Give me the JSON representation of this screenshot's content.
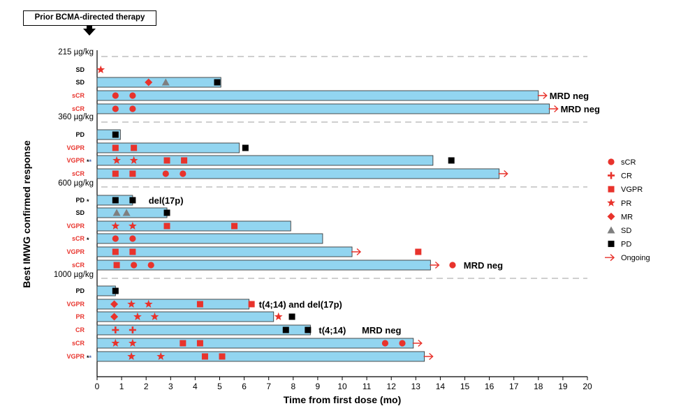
{
  "prior_therapy_label": "Prior BCMA-directed therapy",
  "colors": {
    "bar_fill": "#92D5F0",
    "bar_stroke": "#3a3a3a",
    "red": "#E8332C",
    "gray": "#7F7F7F",
    "black": "#000000",
    "dashed": "#BFBFBF",
    "star_blue": "#4F6DB8"
  },
  "chart_data": {
    "type": "swimmer",
    "xlabel": "Time from first dose (mo)",
    "ylabel": "Best IMWG confirmed response",
    "xlim": [
      0,
      20
    ],
    "xticks": [
      "0",
      "1",
      "2",
      "3",
      "4",
      "5",
      "6",
      "7",
      "8",
      "9",
      "10",
      "11",
      "12",
      "13",
      "14",
      "15",
      "16",
      "17",
      "18",
      "19",
      "20"
    ],
    "legend": [
      {
        "marker": "circle",
        "label": "sCR",
        "color": "red"
      },
      {
        "marker": "cross",
        "label": "CR",
        "color": "red"
      },
      {
        "marker": "square",
        "label": "VGPR",
        "color": "red"
      },
      {
        "marker": "star",
        "label": "PR",
        "color": "red"
      },
      {
        "marker": "diamond",
        "label": "MR",
        "color": "red"
      },
      {
        "marker": "triangle",
        "label": "SD",
        "color": "gray"
      },
      {
        "marker": "square",
        "label": "PD",
        "color": "black"
      },
      {
        "marker": "arrow",
        "label": "Ongoing",
        "color": "red"
      }
    ],
    "doses": [
      {
        "label": "215 µg/kg",
        "rows": [
          {
            "label": "SD",
            "red": false,
            "end": null,
            "arrow": false,
            "events": [
              {
                "x": 0.15,
                "m": "star",
                "c": "red"
              }
            ]
          },
          {
            "label": "SD",
            "red": false,
            "end": 5.05,
            "arrow": false,
            "events": [
              {
                "x": 2.1,
                "m": "diamond",
                "c": "red"
              },
              {
                "x": 2.8,
                "m": "triangle",
                "c": "gray"
              },
              {
                "x": 4.9,
                "m": "square",
                "c": "black"
              }
            ]
          },
          {
            "label": "sCR",
            "red": true,
            "end": 18.0,
            "arrow": true,
            "note": "MRD neg",
            "events": [
              {
                "x": 0.75,
                "m": "circle",
                "c": "red"
              },
              {
                "x": 1.45,
                "m": "circle",
                "c": "red"
              }
            ]
          },
          {
            "label": "sCR",
            "red": true,
            "end": 18.45,
            "arrow": true,
            "note": "MRD neg",
            "events": [
              {
                "x": 0.75,
                "m": "circle",
                "c": "red"
              },
              {
                "x": 1.45,
                "m": "circle",
                "c": "red"
              }
            ]
          }
        ]
      },
      {
        "label": "360 µg/kg",
        "rows": [
          {
            "label": "PD",
            "red": false,
            "end": 0.95,
            "arrow": false,
            "events": [
              {
                "x": 0.75,
                "m": "square",
                "c": "black"
              }
            ]
          },
          {
            "label": "VGPR",
            "red": true,
            "end": 5.8,
            "arrow": false,
            "events": [
              {
                "x": 0.75,
                "m": "square",
                "c": "red"
              },
              {
                "x": 1.5,
                "m": "square",
                "c": "red"
              },
              {
                "x": 6.05,
                "m": "square",
                "c": "black"
              }
            ]
          },
          {
            "label": "VGPR",
            "red": true,
            "star": "**",
            "end": 13.7,
            "arrow": false,
            "events": [
              {
                "x": 0.8,
                "m": "star",
                "c": "red"
              },
              {
                "x": 1.5,
                "m": "star",
                "c": "red"
              },
              {
                "x": 2.85,
                "m": "square",
                "c": "red"
              },
              {
                "x": 3.55,
                "m": "square",
                "c": "red"
              },
              {
                "x": 14.45,
                "m": "square",
                "c": "black"
              }
            ]
          },
          {
            "label": "sCR",
            "red": true,
            "end": 16.4,
            "arrow": true,
            "events": [
              {
                "x": 0.75,
                "m": "square",
                "c": "red"
              },
              {
                "x": 1.45,
                "m": "square",
                "c": "red"
              },
              {
                "x": 2.8,
                "m": "circle",
                "c": "red"
              },
              {
                "x": 3.5,
                "m": "circle",
                "c": "red"
              }
            ]
          }
        ]
      },
      {
        "label": "600 µg/kg",
        "rows": [
          {
            "label": "PD",
            "red": false,
            "star": "*",
            "end": 1.45,
            "arrow": false,
            "note": "del(17p)",
            "events": [
              {
                "x": 0.75,
                "m": "square",
                "c": "black"
              },
              {
                "x": 1.45,
                "m": "square",
                "c": "black"
              }
            ]
          },
          {
            "label": "SD",
            "red": false,
            "end": 2.85,
            "arrow": false,
            "events": [
              {
                "x": 0.8,
                "m": "triangle",
                "c": "gray"
              },
              {
                "x": 1.2,
                "m": "triangle",
                "c": "gray"
              },
              {
                "x": 2.85,
                "m": "square",
                "c": "black"
              }
            ]
          },
          {
            "label": "VGPR",
            "red": true,
            "end": 7.9,
            "arrow": false,
            "events": [
              {
                "x": 0.75,
                "m": "star",
                "c": "red"
              },
              {
                "x": 1.45,
                "m": "star",
                "c": "red"
              },
              {
                "x": 2.85,
                "m": "square",
                "c": "red"
              },
              {
                "x": 5.6,
                "m": "square",
                "c": "red"
              }
            ]
          },
          {
            "label": "sCR",
            "red": true,
            "star": "*",
            "end": 9.2,
            "arrow": false,
            "events": [
              {
                "x": 0.75,
                "m": "circle",
                "c": "red"
              },
              {
                "x": 1.45,
                "m": "circle",
                "c": "red"
              }
            ]
          },
          {
            "label": "VGPR",
            "red": true,
            "end": 10.4,
            "arrow": true,
            "events": [
              {
                "x": 0.75,
                "m": "square",
                "c": "red"
              },
              {
                "x": 1.45,
                "m": "square",
                "c": "red"
              },
              {
                "x": 13.1,
                "m": "square",
                "c": "red"
              }
            ]
          },
          {
            "label": "sCR",
            "red": true,
            "end": 13.6,
            "arrow": true,
            "note": "MRD neg",
            "events": [
              {
                "x": 0.8,
                "m": "square",
                "c": "red"
              },
              {
                "x": 1.5,
                "m": "circle",
                "c": "red"
              },
              {
                "x": 2.2,
                "m": "circle",
                "c": "red"
              },
              {
                "x": 14.5,
                "m": "circle",
                "c": "red"
              }
            ]
          }
        ]
      },
      {
        "label": "1000 µg/kg",
        "rows": [
          {
            "label": "PD",
            "red": false,
            "end": 0.75,
            "arrow": false,
            "events": [
              {
                "x": 0.75,
                "m": "square",
                "c": "black"
              }
            ]
          },
          {
            "label": "VGPR",
            "red": true,
            "end": 6.2,
            "arrow": false,
            "note": "t(4;14) and del(17p)",
            "events": [
              {
                "x": 0.7,
                "m": "diamond",
                "c": "red"
              },
              {
                "x": 1.4,
                "m": "star",
                "c": "red"
              },
              {
                "x": 2.1,
                "m": "star",
                "c": "red"
              },
              {
                "x": 4.2,
                "m": "square",
                "c": "red"
              },
              {
                "x": 6.3,
                "m": "square",
                "c": "red"
              }
            ]
          },
          {
            "label": "PR",
            "red": true,
            "end": 7.2,
            "arrow": false,
            "events": [
              {
                "x": 0.7,
                "m": "diamond",
                "c": "red"
              },
              {
                "x": 1.65,
                "m": "star",
                "c": "red"
              },
              {
                "x": 2.35,
                "m": "star",
                "c": "red"
              },
              {
                "x": 7.4,
                "m": "star",
                "c": "red"
              },
              {
                "x": 7.95,
                "m": "square",
                "c": "black"
              }
            ]
          },
          {
            "label": "CR",
            "red": true,
            "end": 8.7,
            "arrow": false,
            "note": "t(4;14)",
            "note2": "MRD neg",
            "events": [
              {
                "x": 0.75,
                "m": "cross",
                "c": "red"
              },
              {
                "x": 1.45,
                "m": "cross",
                "c": "red"
              },
              {
                "x": 7.7,
                "m": "square",
                "c": "black"
              },
              {
                "x": 8.6,
                "m": "square",
                "c": "black"
              }
            ]
          },
          {
            "label": "sCR",
            "red": true,
            "end": 12.9,
            "arrow": true,
            "events": [
              {
                "x": 0.75,
                "m": "star",
                "c": "red"
              },
              {
                "x": 1.45,
                "m": "star",
                "c": "red"
              },
              {
                "x": 3.5,
                "m": "square",
                "c": "red"
              },
              {
                "x": 4.2,
                "m": "square",
                "c": "red"
              },
              {
                "x": 11.75,
                "m": "circle",
                "c": "red"
              },
              {
                "x": 12.45,
                "m": "circle",
                "c": "red"
              }
            ]
          },
          {
            "label": "VGPR",
            "red": true,
            "star": "**",
            "end": 13.35,
            "arrow": true,
            "events": [
              {
                "x": 1.4,
                "m": "star",
                "c": "red"
              },
              {
                "x": 2.6,
                "m": "star",
                "c": "red"
              },
              {
                "x": 4.4,
                "m": "square",
                "c": "red"
              },
              {
                "x": 5.1,
                "m": "square",
                "c": "red"
              }
            ]
          }
        ]
      }
    ]
  }
}
